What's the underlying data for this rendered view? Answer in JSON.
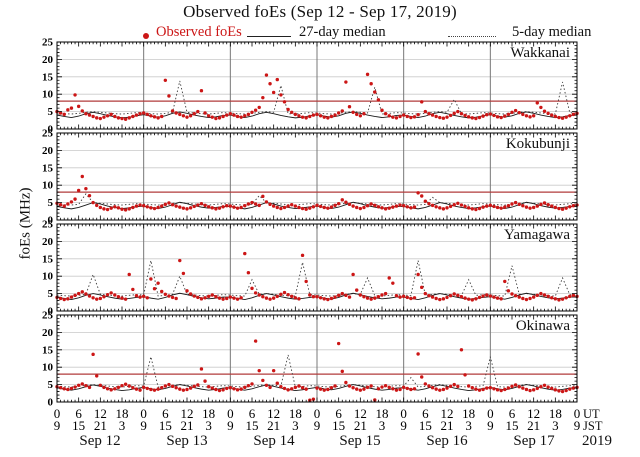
{
  "chart_data": {
    "type": "scatter",
    "title": "Observed foEs (Sep 12 - Sep 17, 2019)",
    "ylabel": "foEs (MHz)",
    "year": "2019",
    "x_unit_labels": [
      "UT",
      "JST"
    ],
    "days": [
      "Sep 12",
      "Sep 13",
      "Sep 14",
      "Sep 15",
      "Sep 16",
      "Sep 17"
    ],
    "x_range_hours": [
      0,
      144
    ],
    "ylim": [
      0,
      25
    ],
    "y_ticks": [
      0,
      5,
      10,
      15,
      20,
      25
    ],
    "y_gridlines": [
      5,
      10,
      15,
      20
    ],
    "ut_tick_cycle": [
      0,
      6,
      12,
      18
    ],
    "jst_tick_cycle": [
      9,
      15,
      21,
      3
    ],
    "grid": "on",
    "legend_position": "top",
    "legend": [
      {
        "label": "Observed foEs",
        "marker": "red-dot"
      },
      {
        "label": "27-day median",
        "marker": "solid-line"
      },
      {
        "label": "5-day median",
        "marker": "dotted-line"
      }
    ],
    "colors": {
      "observed": "#cc1616",
      "median27": "#1a1a1a",
      "median5": "#3c3c3c",
      "reference_line": "#b23b3b",
      "grid": "#c9c9c9",
      "day_line": "#787878",
      "frame": "#000000"
    },
    "panels": [
      {
        "station": "Wakkanai",
        "red_reference_line": 8,
        "observed_hourly": [
          5.0,
          4.6,
          4.2,
          5.5,
          6.0,
          9.8,
          6.5,
          5.2,
          4.4,
          4.0,
          3.6,
          3.2,
          3.0,
          3.4,
          3.8,
          4.2,
          3.6,
          3.2,
          3.0,
          2.8,
          3.2,
          3.6,
          4.0,
          4.4,
          4.6,
          4.2,
          3.8,
          3.5,
          3.2,
          3.6,
          14.0,
          9.5,
          5.2,
          4.6,
          4.2,
          3.8,
          3.4,
          3.8,
          4.4,
          5.0,
          11.0,
          4.6,
          3.8,
          3.4,
          3.0,
          3.2,
          3.6,
          4.0,
          4.4,
          4.0,
          3.6,
          3.4,
          3.8,
          4.2,
          4.8,
          5.4,
          6.2,
          9.0,
          15.5,
          13.0,
          10.5,
          14.2,
          9.8,
          7.8,
          5.6,
          4.8,
          4.2,
          3.8,
          3.4,
          3.2,
          3.6,
          4.0,
          4.2,
          3.8,
          3.4,
          3.2,
          3.6,
          4.0,
          4.6,
          5.2,
          13.5,
          6.4,
          4.8,
          4.2,
          3.8,
          4.4,
          15.7,
          13.0,
          10.6,
          8.4,
          5.4,
          4.4,
          3.8,
          3.4,
          3.2,
          3.6,
          4.0,
          3.6,
          3.3,
          3.5,
          4.1,
          7.8,
          5.0,
          4.4,
          4.0,
          3.6,
          3.3,
          3.1,
          3.4,
          3.9,
          4.5,
          5.0,
          4.4,
          3.9,
          3.5,
          3.2,
          3.0,
          3.3,
          3.7,
          4.1,
          4.3,
          3.9,
          3.5,
          3.3,
          3.7,
          4.2,
          4.8,
          5.3,
          4.7,
          4.2,
          3.8,
          3.5,
          3.8,
          7.5,
          6.2,
          5.1,
          4.5,
          4.0,
          3.6,
          3.3,
          3.1,
          3.4,
          3.8,
          4.2,
          4.5
        ],
        "median27_2h": [
          4.0,
          3.6,
          3.3,
          3.7,
          4.4,
          4.8,
          4.4,
          3.9,
          3.5,
          3.2,
          3.4,
          3.8,
          4.1,
          3.7,
          3.4,
          3.8,
          4.5,
          4.9,
          4.5,
          4.0,
          3.6,
          3.3,
          3.5,
          3.9,
          4.0,
          3.6,
          3.3,
          3.7,
          4.4,
          4.8,
          4.4,
          3.9,
          3.5,
          3.2,
          3.4,
          3.8,
          4.1,
          3.7,
          3.4,
          3.8,
          4.5,
          4.9,
          4.5,
          4.0,
          3.6,
          3.3,
          3.5,
          3.9,
          4.0,
          3.6,
          3.3,
          3.7,
          4.4,
          4.8,
          4.4,
          3.9,
          3.5,
          3.2,
          3.4,
          3.8,
          4.1,
          3.7,
          3.4,
          3.8,
          4.5,
          4.9,
          4.5,
          4.0,
          3.6,
          3.3,
          3.5,
          3.9,
          4.0
        ],
        "median5_2h": [
          4.6,
          4.4,
          4.3,
          4.5,
          4.8,
          5.0,
          4.8,
          4.6,
          4.4,
          4.3,
          4.5,
          4.7,
          4.6,
          4.4,
          4.3,
          4.5,
          4.8,
          13.8,
          4.8,
          4.6,
          4.4,
          4.3,
          4.5,
          4.7,
          4.6,
          4.4,
          4.3,
          4.5,
          4.8,
          5.0,
          4.8,
          12.5,
          4.4,
          4.3,
          4.5,
          4.7,
          4.6,
          4.4,
          4.3,
          4.5,
          4.8,
          5.0,
          4.8,
          4.6,
          12.0,
          4.3,
          4.5,
          4.7,
          4.6,
          4.4,
          4.3,
          4.5,
          4.8,
          5.0,
          4.8,
          8.5,
          4.4,
          4.3,
          4.5,
          4.7,
          4.6,
          4.4,
          4.3,
          4.5,
          4.8,
          5.0,
          4.8,
          4.6,
          4.4,
          4.3,
          13.5,
          4.7,
          4.6
        ]
      },
      {
        "station": "Kokubunji",
        "red_reference_line": 8,
        "observed_hourly": [
          4.8,
          4.4,
          4.0,
          4.6,
          5.2,
          6.0,
          8.5,
          12.5,
          9.0,
          7.0,
          5.0,
          4.2,
          3.6,
          3.2,
          3.0,
          3.4,
          3.8,
          3.5,
          3.1,
          2.9,
          3.2,
          3.6,
          4.0,
          4.3,
          4.1,
          3.8,
          3.5,
          3.3,
          3.6,
          4.0,
          4.5,
          4.9,
          4.4,
          4.0,
          3.7,
          3.4,
          3.2,
          3.5,
          3.9,
          4.3,
          4.7,
          4.2,
          3.8,
          3.5,
          3.2,
          3.4,
          3.8,
          4.1,
          4.0,
          3.7,
          3.4,
          3.6,
          4.1,
          4.6,
          5.0,
          4.6,
          4.2,
          6.8,
          5.2,
          4.5,
          4.0,
          3.6,
          3.3,
          3.6,
          4.0,
          4.4,
          4.0,
          3.6,
          3.3,
          3.1,
          3.4,
          3.8,
          4.2,
          3.9,
          3.6,
          3.4,
          3.7,
          4.2,
          4.7,
          5.8,
          5.1,
          4.5,
          4.0,
          3.6,
          3.3,
          3.6,
          4.1,
          4.6,
          4.2,
          3.8,
          3.5,
          3.2,
          3.4,
          3.7,
          4.0,
          4.3,
          4.1,
          3.8,
          3.5,
          3.7,
          7.8,
          6.9,
          5.4,
          4.7,
          4.2,
          3.8,
          3.5,
          3.2,
          3.5,
          3.9,
          4.4,
          4.8,
          4.3,
          3.9,
          3.5,
          3.2,
          3.0,
          3.3,
          3.7,
          4.0,
          4.2,
          3.9,
          3.6,
          3.4,
          3.7,
          4.1,
          4.6,
          5.0,
          4.5,
          4.1,
          3.7,
          3.4,
          3.6,
          4.0,
          4.5,
          4.9,
          4.4,
          4.0,
          3.6,
          3.3,
          3.1,
          3.4,
          3.8,
          4.1,
          4.3
        ],
        "median27_2h": [
          3.9,
          3.5,
          3.2,
          3.6,
          4.3,
          5.0,
          4.6,
          4.0,
          3.6,
          3.3,
          3.5,
          3.8,
          4.0,
          3.6,
          3.3,
          3.7,
          4.4,
          5.1,
          4.7,
          4.1,
          3.7,
          3.4,
          3.6,
          3.9,
          3.9,
          3.5,
          3.2,
          3.6,
          4.3,
          5.0,
          4.6,
          4.0,
          3.6,
          3.3,
          3.5,
          3.8,
          4.0,
          3.6,
          3.3,
          3.7,
          4.4,
          5.1,
          4.7,
          4.1,
          3.7,
          3.4,
          3.6,
          3.9,
          3.9,
          3.5,
          3.2,
          3.6,
          4.3,
          5.0,
          4.6,
          4.0,
          3.6,
          3.3,
          3.5,
          3.8,
          4.0,
          3.6,
          3.3,
          3.7,
          4.4,
          5.1,
          4.7,
          4.1,
          3.7,
          3.4,
          3.6,
          3.9,
          3.9
        ],
        "median5_2h": [
          4.6,
          4.4,
          4.3,
          4.5,
          7.5,
          5.0,
          4.8,
          4.6,
          4.4,
          4.3,
          4.5,
          4.7,
          4.6,
          4.4,
          4.3,
          4.5,
          4.8,
          5.0,
          4.8,
          4.6,
          4.4,
          4.3,
          4.5,
          4.7,
          4.6,
          4.4,
          4.3,
          4.5,
          7.0,
          5.0,
          4.8,
          4.6,
          4.4,
          4.3,
          4.5,
          4.7,
          4.6,
          4.4,
          4.3,
          4.5,
          4.8,
          5.0,
          4.8,
          4.6,
          4.4,
          4.3,
          4.5,
          4.7,
          4.6,
          4.4,
          4.3,
          4.5,
          6.5,
          5.0,
          4.8,
          4.6,
          4.4,
          4.3,
          4.5,
          4.7,
          4.6,
          4.4,
          4.3,
          4.5,
          4.8,
          5.0,
          4.8,
          4.6,
          4.4,
          4.3,
          4.5,
          4.7,
          4.6
        ]
      },
      {
        "station": "Yamagawa",
        "red_reference_line": null,
        "observed_hourly": [
          3.9,
          3.6,
          3.3,
          3.5,
          4.0,
          4.5,
          5.0,
          5.5,
          4.9,
          4.3,
          3.8,
          3.4,
          3.6,
          4.1,
          4.7,
          5.2,
          4.6,
          4.1,
          3.7,
          3.4,
          10.5,
          6.2,
          4.4,
          4.0,
          4.2,
          3.8,
          9.2,
          6.4,
          8.0,
          5.6,
          4.8,
          4.3,
          3.9,
          3.6,
          14.5,
          10.8,
          5.8,
          4.9,
          4.3,
          3.9,
          3.5,
          3.8,
          4.2,
          4.6,
          4.1,
          3.7,
          3.4,
          3.6,
          4.0,
          3.7,
          3.4,
          3.8,
          16.5,
          11.0,
          6.5,
          5.2,
          4.6,
          4.1,
          3.7,
          3.4,
          3.7,
          4.2,
          4.8,
          5.3,
          4.7,
          4.2,
          3.8,
          3.5,
          16.0,
          8.5,
          4.6,
          4.1,
          4.1,
          3.8,
          3.5,
          3.3,
          3.6,
          4.0,
          4.5,
          5.0,
          4.5,
          4.0,
          10.5,
          6.0,
          4.6,
          4.1,
          3.7,
          3.4,
          3.7,
          4.1,
          4.6,
          5.0,
          9.5,
          8.0,
          4.4,
          4.0,
          4.2,
          3.9,
          3.6,
          3.8,
          10.5,
          6.8,
          5.0,
          4.4,
          4.0,
          3.6,
          3.3,
          3.5,
          3.9,
          4.4,
          4.9,
          4.5,
          4.1,
          3.7,
          3.4,
          3.2,
          3.5,
          3.9,
          4.3,
          4.6,
          4.3,
          4.0,
          3.7,
          3.5,
          8.5,
          5.8,
          4.9,
          4.4,
          4.0,
          3.6,
          3.3,
          3.6,
          4.0,
          4.5,
          5.0,
          4.6,
          4.2,
          3.8,
          3.5,
          3.2,
          3.4,
          3.8,
          4.2,
          4.5,
          4.2
        ],
        "median27_2h": [
          4.0,
          3.6,
          3.3,
          3.8,
          4.5,
          5.0,
          4.6,
          4.1,
          3.7,
          3.4,
          3.6,
          3.9,
          4.1,
          3.7,
          3.4,
          3.9,
          4.6,
          5.1,
          4.7,
          4.2,
          3.8,
          3.5,
          3.7,
          4.0,
          4.0,
          3.6,
          3.3,
          3.8,
          4.5,
          5.0,
          4.6,
          4.1,
          3.7,
          3.4,
          3.6,
          3.9,
          4.1,
          3.7,
          3.4,
          3.9,
          4.6,
          5.1,
          4.7,
          4.2,
          3.8,
          3.5,
          3.7,
          4.0,
          4.0,
          3.6,
          3.3,
          3.8,
          4.5,
          5.0,
          4.6,
          4.1,
          3.7,
          3.4,
          3.6,
          3.9,
          4.1,
          3.7,
          3.4,
          3.9,
          4.6,
          5.1,
          4.7,
          4.2,
          3.8,
          3.5,
          3.7,
          4.0,
          4.0
        ],
        "median5_2h": [
          4.6,
          4.4,
          4.3,
          4.5,
          4.8,
          10.5,
          4.8,
          4.6,
          4.4,
          4.3,
          4.5,
          4.7,
          4.6,
          14.5,
          4.3,
          4.5,
          4.8,
          10.0,
          4.8,
          4.6,
          4.4,
          4.3,
          4.5,
          4.7,
          4.6,
          4.4,
          4.3,
          9.0,
          4.8,
          5.0,
          4.8,
          4.6,
          4.4,
          4.3,
          14.0,
          4.7,
          4.6,
          4.4,
          4.3,
          4.5,
          4.8,
          5.0,
          4.8,
          9.5,
          4.4,
          4.3,
          4.5,
          4.7,
          4.6,
          4.4,
          14.5,
          4.5,
          4.8,
          5.0,
          4.8,
          4.6,
          4.4,
          9.0,
          4.5,
          4.7,
          4.6,
          4.4,
          4.3,
          13.0,
          4.8,
          5.0,
          4.8,
          4.6,
          4.4,
          4.3,
          9.5,
          4.7,
          4.6
        ]
      },
      {
        "station": "Okinawa",
        "red_reference_line": 8,
        "observed_hourly": [
          4.4,
          4.1,
          3.8,
          3.6,
          3.9,
          4.3,
          4.8,
          5.2,
          4.7,
          4.2,
          13.7,
          7.5,
          4.8,
          4.2,
          3.8,
          3.5,
          3.8,
          4.2,
          4.7,
          5.1,
          4.6,
          4.1,
          3.7,
          3.4,
          4.2,
          3.9,
          3.6,
          3.4,
          3.7,
          4.1,
          4.6,
          5.0,
          4.5,
          4.1,
          3.7,
          3.4,
          3.6,
          4.0,
          4.5,
          4.9,
          9.5,
          6.0,
          4.4,
          4.0,
          3.6,
          3.3,
          3.5,
          3.9,
          4.1,
          3.8,
          3.5,
          3.7,
          4.2,
          4.7,
          5.2,
          17.5,
          9.0,
          6.2,
          4.8,
          4.2,
          9.0,
          5.4,
          4.4,
          3.9,
          3.5,
          3.8,
          4.2,
          4.6,
          4.1,
          3.7,
          0.5,
          0.8,
          4.0,
          3.7,
          3.4,
          3.6,
          4.1,
          4.6,
          16.8,
          8.8,
          5.6,
          4.6,
          4.1,
          3.7,
          3.4,
          3.7,
          4.2,
          4.6,
          0.6,
          3.8,
          4.3,
          4.7,
          4.2,
          3.8,
          3.4,
          3.6,
          4.2,
          3.9,
          3.6,
          3.8,
          13.8,
          7.2,
          5.2,
          4.6,
          4.1,
          3.7,
          3.4,
          3.6,
          4.0,
          4.5,
          5.0,
          4.5,
          15.0,
          7.8,
          4.6,
          4.1,
          3.7,
          3.4,
          3.6,
          4.0,
          4.1,
          3.8,
          3.5,
          3.3,
          3.6,
          4.0,
          4.5,
          4.9,
          4.4,
          4.0,
          3.6,
          3.3,
          3.5,
          3.9,
          4.4,
          4.8,
          4.3,
          3.9,
          3.5,
          3.2,
          3.0,
          3.3,
          3.7,
          4.0,
          4.2
        ],
        "median27_2h": [
          4.1,
          3.7,
          3.4,
          3.8,
          4.4,
          4.9,
          4.5,
          4.0,
          3.6,
          3.3,
          3.5,
          3.9,
          4.2,
          3.8,
          3.5,
          3.9,
          4.5,
          5.0,
          4.6,
          4.1,
          3.7,
          3.4,
          3.6,
          4.0,
          4.1,
          3.7,
          3.4,
          3.8,
          4.4,
          4.9,
          4.5,
          4.0,
          3.6,
          3.3,
          3.5,
          3.9,
          4.2,
          3.8,
          3.5,
          3.9,
          4.5,
          5.0,
          4.6,
          4.1,
          3.7,
          3.4,
          3.6,
          4.0,
          4.1,
          3.7,
          3.4,
          3.8,
          4.4,
          4.9,
          4.5,
          4.0,
          3.6,
          3.3,
          3.5,
          3.9,
          4.2,
          3.8,
          3.5,
          3.9,
          4.5,
          5.0,
          4.6,
          4.1,
          3.7,
          3.4,
          3.6,
          4.0,
          4.1
        ],
        "median5_2h": [
          4.6,
          4.4,
          4.3,
          4.5,
          4.8,
          5.0,
          4.8,
          4.6,
          4.4,
          4.3,
          4.5,
          4.7,
          4.6,
          13.0,
          4.3,
          4.5,
          4.8,
          5.0,
          4.8,
          4.6,
          4.4,
          4.3,
          4.5,
          4.7,
          4.6,
          4.4,
          4.3,
          4.5,
          4.8,
          5.0,
          4.8,
          4.6,
          13.5,
          4.3,
          4.5,
          4.7,
          4.6,
          4.4,
          4.3,
          4.5,
          4.8,
          5.0,
          4.8,
          4.6,
          4.4,
          4.3,
          4.5,
          4.7,
          4.6,
          7.0,
          4.3,
          4.5,
          4.8,
          5.0,
          4.8,
          4.6,
          4.4,
          4.3,
          4.5,
          4.7,
          13.0,
          4.4,
          4.3,
          4.5,
          4.8,
          5.0,
          4.8,
          4.6,
          4.4,
          4.3,
          4.5,
          4.7,
          4.6
        ]
      }
    ]
  }
}
